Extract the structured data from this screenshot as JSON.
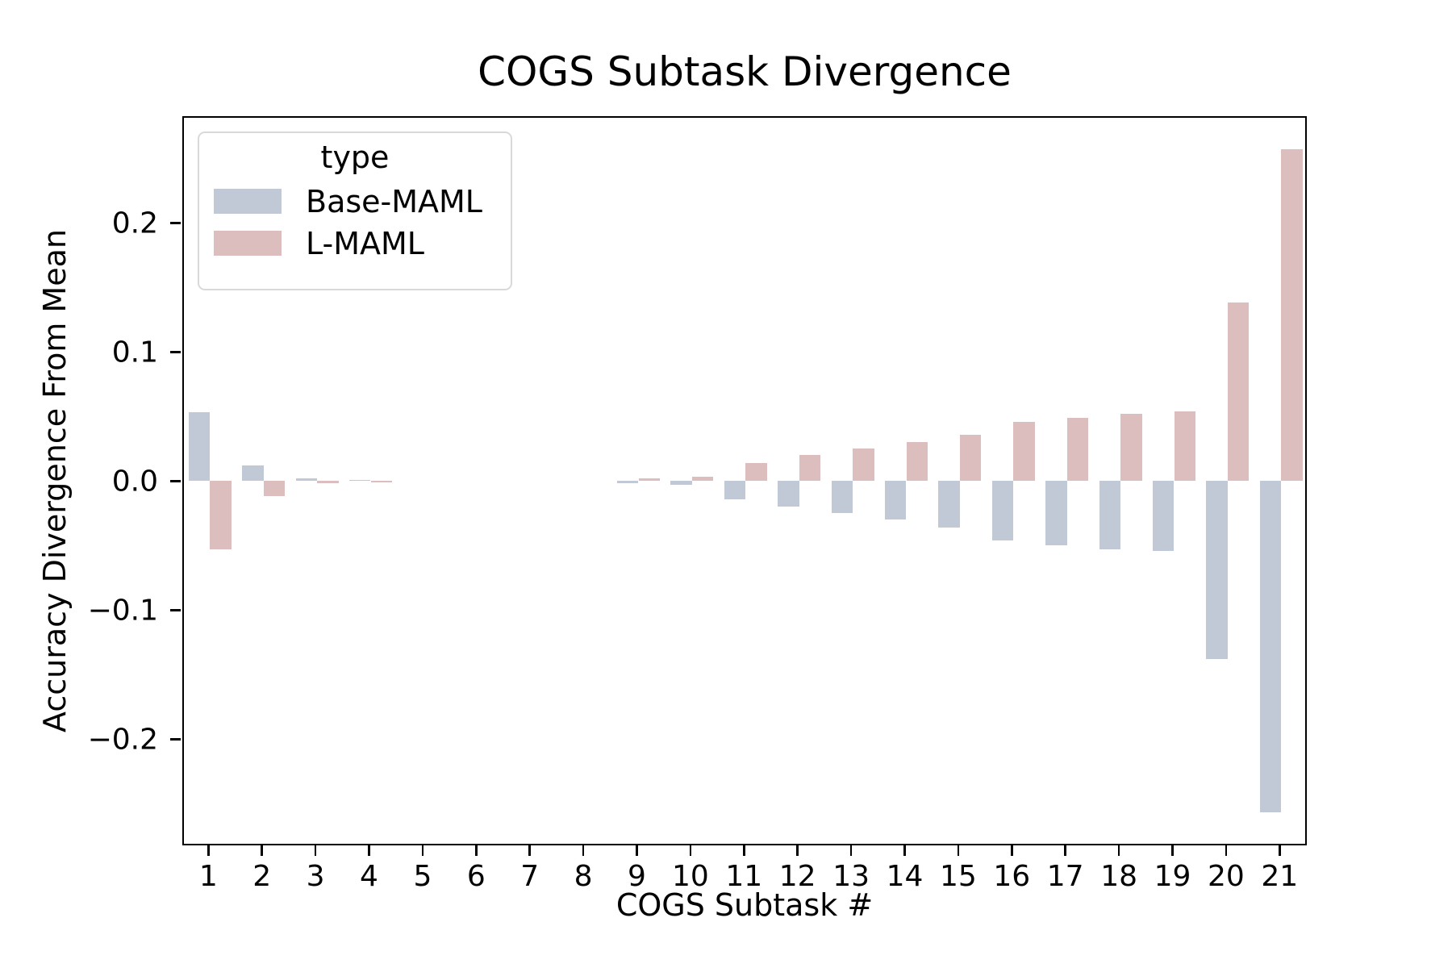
{
  "title": "COGS Subtask Divergence",
  "chart_data": {
    "type": "bar",
    "title": "COGS Subtask Divergence",
    "xlabel": "COGS Subtask #",
    "ylabel": "Accuracy Divergence From Mean",
    "categories": [
      1,
      2,
      3,
      4,
      5,
      6,
      7,
      8,
      9,
      10,
      11,
      12,
      13,
      14,
      15,
      16,
      17,
      18,
      19,
      20,
      21
    ],
    "series": [
      {
        "name": "Base-MAML",
        "color": "#c2c9d6",
        "values": [
          0.053,
          0.012,
          0.002,
          0.001,
          0,
          0,
          0,
          0,
          -0.002,
          -0.003,
          -0.014,
          -0.02,
          -0.025,
          -0.03,
          -0.036,
          -0.046,
          -0.05,
          -0.053,
          -0.054,
          -0.138,
          -0.257
        ]
      },
      {
        "name": "L-MAML",
        "color": "#dbbebd",
        "values": [
          -0.053,
          -0.012,
          -0.002,
          -0.001,
          0,
          0,
          0,
          0,
          0.002,
          0.003,
          0.014,
          0.02,
          0.025,
          0.03,
          0.036,
          0.046,
          0.049,
          0.052,
          0.054,
          0.138,
          0.257
        ]
      }
    ],
    "ylim": [
      -0.282,
      0.283
    ],
    "yticks": [
      {
        "value": 0.2,
        "label": "0.2"
      },
      {
        "value": 0.1,
        "label": "0.1"
      },
      {
        "value": 0.0,
        "label": "0.0"
      },
      {
        "value": -0.1,
        "label": "−0.1"
      },
      {
        "value": -0.2,
        "label": "−0.2"
      }
    ],
    "legend": {
      "title": "type",
      "position": "upper left"
    },
    "grid": false
  }
}
